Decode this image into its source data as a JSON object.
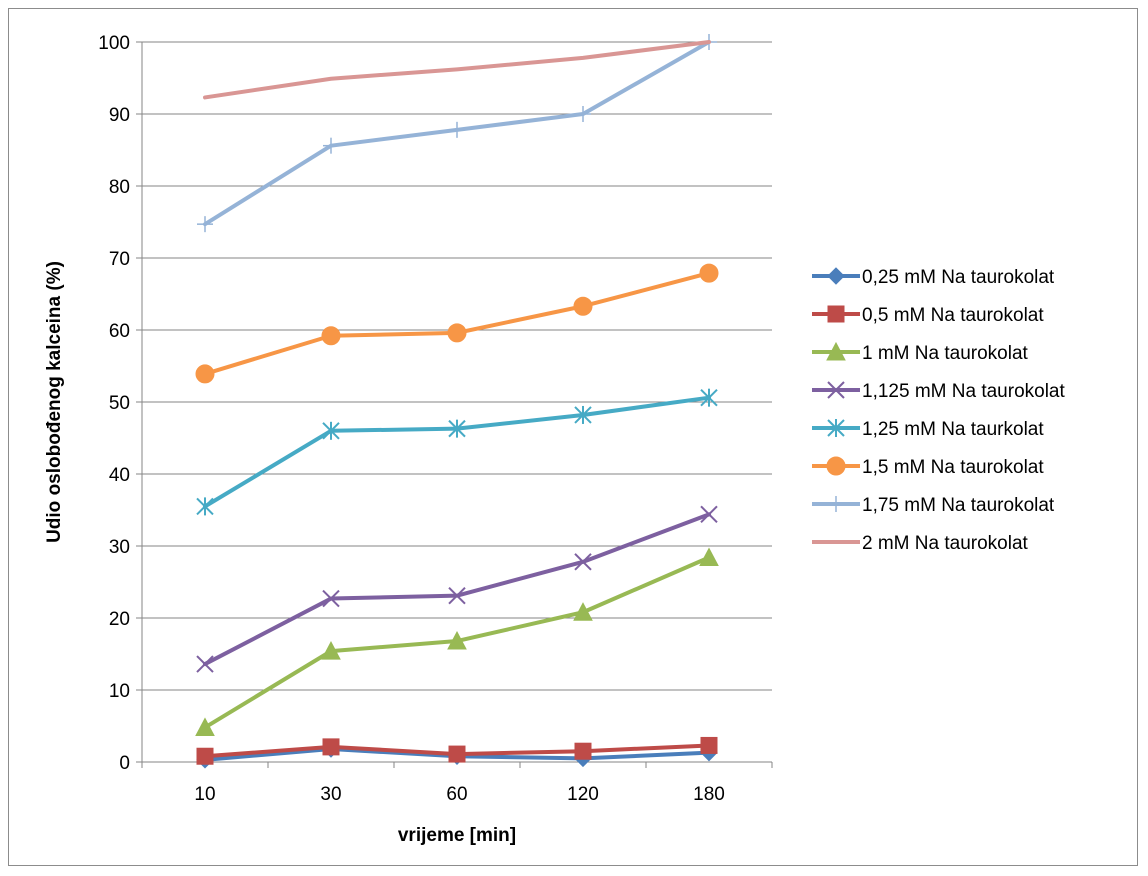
{
  "chart_data": {
    "type": "line",
    "title": "",
    "xlabel": "vrijeme [min]",
    "ylabel": "Udio oslobođenog kalceina (%)",
    "categories": [
      "10",
      "30",
      "60",
      "120",
      "180"
    ],
    "ylim": [
      0,
      100
    ],
    "yticks": [
      0,
      10,
      20,
      30,
      40,
      50,
      60,
      70,
      80,
      90,
      100
    ],
    "grid": "horizontal",
    "legend_position": "right",
    "series": [
      {
        "name": "0,25 mM Na taurokolat",
        "color": "#4a7ebb",
        "marker": "diamond",
        "values": [
          0.3,
          1.8,
          0.8,
          0.5,
          1.3
        ]
      },
      {
        "name": "0,5 mM Na taurokolat",
        "color": "#be4b48",
        "marker": "square",
        "values": [
          0.8,
          2.1,
          1.1,
          1.5,
          2.3
        ]
      },
      {
        "name": "1 mM Na taurokolat",
        "color": "#98b954",
        "marker": "triangle",
        "values": [
          4.8,
          15.4,
          16.8,
          20.8,
          28.4
        ]
      },
      {
        "name": "1,125 mM Na taurokolat",
        "color": "#7d60a0",
        "marker": "x",
        "values": [
          13.6,
          22.7,
          23.1,
          27.8,
          34.4
        ]
      },
      {
        "name": "1,25 mM Na taurkolat",
        "color": "#46aac5",
        "marker": "star",
        "values": [
          35.5,
          46.0,
          46.3,
          48.2,
          50.6
        ]
      },
      {
        "name": "1,5 mM Na taurokolat",
        "color": "#f79646",
        "marker": "circle",
        "values": [
          53.9,
          59.2,
          59.6,
          63.3,
          67.9
        ]
      },
      {
        "name": "1,75 mM Na taurokolat",
        "color": "#95b3d7",
        "marker": "plus",
        "values": [
          74.7,
          85.6,
          87.8,
          90.0,
          100.0
        ]
      },
      {
        "name": "2 mM Na taurokolat",
        "color": "#d99694",
        "marker": "none",
        "values": [
          92.3,
          94.9,
          96.2,
          97.8,
          100.0
        ]
      }
    ]
  }
}
